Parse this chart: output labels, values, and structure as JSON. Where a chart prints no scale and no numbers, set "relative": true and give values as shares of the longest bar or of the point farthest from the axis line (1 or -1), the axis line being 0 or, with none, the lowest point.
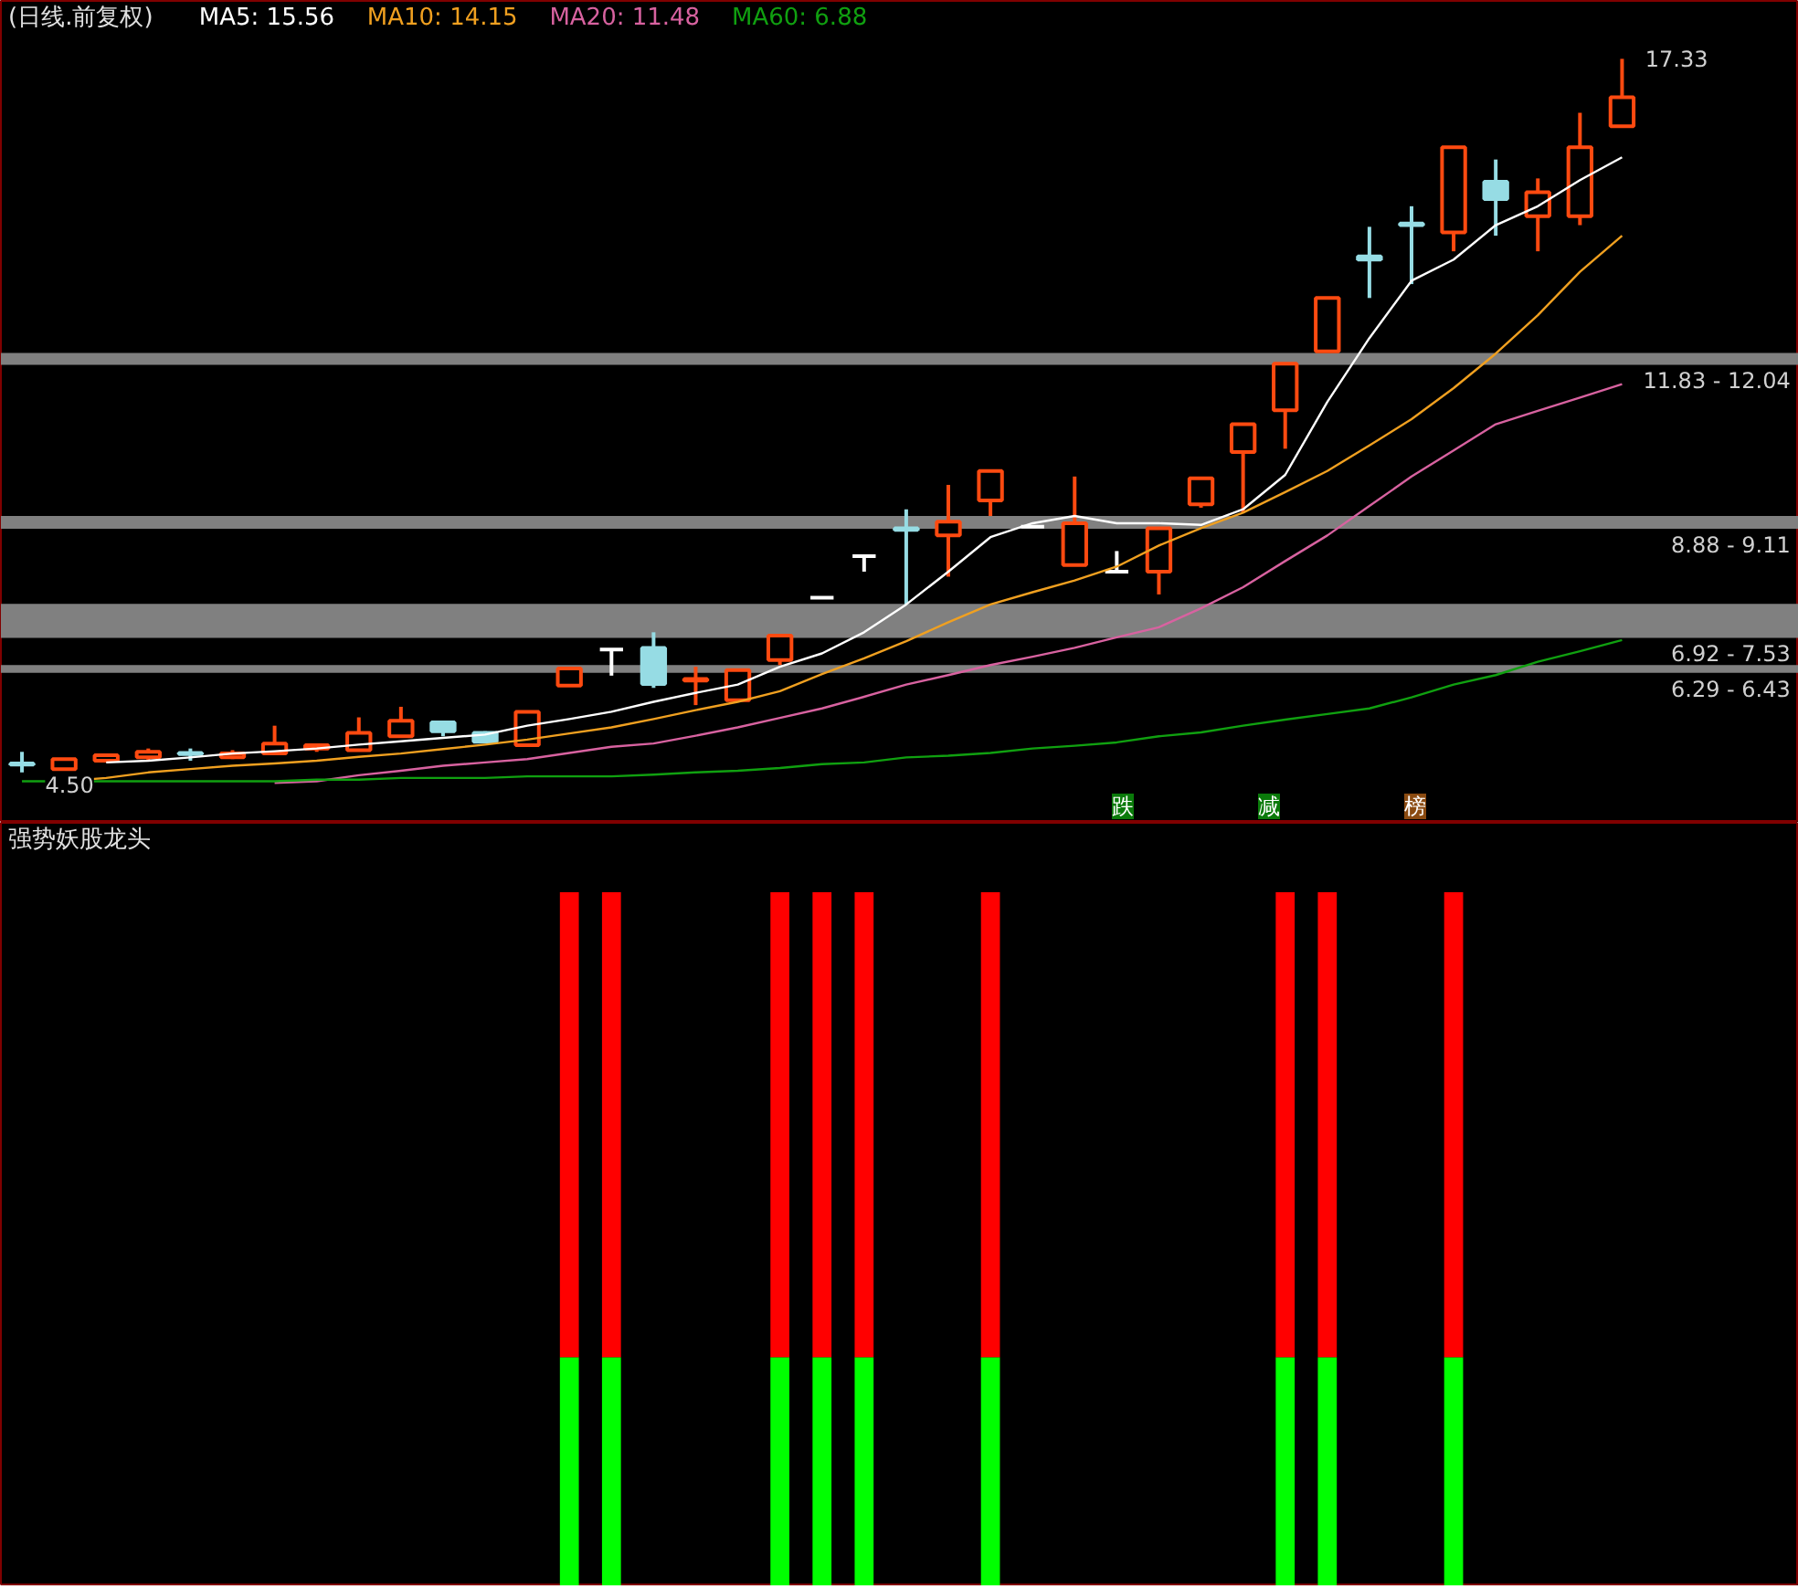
{
  "chart_data": [
    {
      "type": "candlestick",
      "title": "(日线.前复权)",
      "legend": "top",
      "categories": [
        null,
        null,
        null,
        null,
        null,
        null,
        null,
        null,
        null,
        null,
        null,
        null,
        null,
        null,
        null,
        null,
        null,
        null,
        null,
        null,
        null,
        null,
        null,
        null,
        null,
        null,
        null,
        null,
        null,
        null,
        null,
        null,
        null,
        null,
        null,
        null,
        null,
        null,
        null
      ],
      "ohlc": [
        [
          4.66,
          4.87,
          4.5,
          4.64
        ],
        [
          4.56,
          4.74,
          4.56,
          4.74
        ],
        [
          4.71,
          4.81,
          4.71,
          4.81
        ],
        [
          4.77,
          4.93,
          4.71,
          4.87
        ],
        [
          4.85,
          4.93,
          4.71,
          4.83
        ],
        [
          4.77,
          4.9,
          4.74,
          4.84
        ],
        [
          4.84,
          5.34,
          4.84,
          5.02
        ],
        [
          4.93,
          4.99,
          4.87,
          4.99
        ],
        [
          4.9,
          5.49,
          4.9,
          5.21
        ],
        [
          5.15,
          5.68,
          5.15,
          5.43
        ],
        [
          5.4,
          5.4,
          5.15,
          5.24
        ],
        [
          5.21,
          5.24,
          5.05,
          5.05
        ],
        [
          4.99,
          5.59,
          4.99,
          5.59
        ],
        [
          6.06,
          6.37,
          6.06,
          6.37
        ],
        [
          6.71,
          6.71,
          6.24,
          6.71
        ],
        [
          6.74,
          7.02,
          6.02,
          6.09
        ],
        [
          6.15,
          6.4,
          5.71,
          6.18
        ],
        [
          5.8,
          6.34,
          5.8,
          6.34
        ],
        [
          6.52,
          6.96,
          6.43,
          6.96
        ],
        [
          7.64,
          7.64,
          7.64,
          7.64
        ],
        [
          8.39,
          8.39,
          8.11,
          8.39
        ],
        [
          8.89,
          9.23,
          7.52,
          8.86
        ],
        [
          8.76,
          9.67,
          8.02,
          9.01
        ],
        [
          9.39,
          9.92,
          9.11,
          9.92
        ],
        [
          8.92,
          8.92,
          8.92,
          8.92
        ],
        [
          8.23,
          9.82,
          8.23,
          8.98
        ],
        [
          8.11,
          8.48,
          8.11,
          8.11
        ],
        [
          8.11,
          8.89,
          7.7,
          8.89
        ],
        [
          9.32,
          9.79,
          9.26,
          9.79
        ],
        [
          10.26,
          10.76,
          9.17,
          10.76
        ],
        [
          11.01,
          11.85,
          10.32,
          11.85
        ],
        [
          12.07,
          13.03,
          12.07,
          13.03
        ],
        [
          13.78,
          14.31,
          13.03,
          13.72
        ],
        [
          14.37,
          14.68,
          13.28,
          14.34
        ],
        [
          14.21,
          15.74,
          13.87,
          15.74
        ],
        [
          15.12,
          15.52,
          14.15,
          14.81
        ],
        [
          14.5,
          15.18,
          13.87,
          14.93
        ],
        [
          14.5,
          16.36,
          14.34,
          15.74
        ],
        [
          16.12,
          17.33,
          16.12,
          16.64
        ]
      ],
      "colors": [
        "#96dce4",
        "#ff4a10",
        "#ff4a10",
        "#ff4a10",
        "#96dce4",
        "#ff4a10",
        "#ff4a10",
        "#ff4a10",
        "#ff4a10",
        "#ff4a10",
        "#96dce4",
        "#96dce4",
        "#ff4a10",
        "#ff4a10",
        "#ffffff",
        "#96dce4",
        "#ff4a10",
        "#ff4a10",
        "#ff4a10",
        "#ffffff",
        "#ffffff",
        "#96dce4",
        "#ff4a10",
        "#ff4a10",
        "#ffffff",
        "#ff4a10",
        "#ffffff",
        "#ff4a10",
        "#ff4a10",
        "#ff4a10",
        "#ff4a10",
        "#ff4a10",
        "#96dce4",
        "#96dce4",
        "#ff4a10",
        "#96dce4",
        "#ff4a10",
        "#ff4a10",
        "#ff4a10"
      ],
      "series": [
        {
          "type": "line",
          "name": "MA5: 15.56",
          "color": "#ffffff",
          "values": [
            null,
            null,
            4.68,
            4.71,
            4.77,
            4.84,
            4.88,
            4.93,
            5.0,
            5.06,
            5.12,
            5.18,
            5.34,
            5.46,
            5.59,
            5.77,
            5.93,
            6.08,
            6.4,
            6.64,
            7.02,
            7.52,
            8.11,
            8.73,
            8.98,
            9.11,
            8.98,
            8.98,
            8.95,
            9.23,
            9.85,
            11.16,
            12.31,
            13.34,
            13.72,
            14.34,
            14.68,
            15.15,
            15.56
          ]
        },
        {
          "type": "line",
          "name": "MA10: 14.15",
          "color": "#f0a020",
          "values": [
            null,
            4.34,
            4.4,
            4.5,
            4.56,
            4.62,
            4.66,
            4.71,
            4.78,
            4.84,
            4.92,
            5.0,
            5.09,
            5.2,
            5.31,
            5.46,
            5.62,
            5.77,
            5.96,
            6.27,
            6.55,
            6.86,
            7.2,
            7.52,
            7.74,
            7.95,
            8.2,
            8.58,
            8.89,
            9.17,
            9.54,
            9.92,
            10.38,
            10.85,
            11.41,
            12.03,
            12.72,
            13.5,
            14.15
          ]
        },
        {
          "type": "line",
          "name": "MA20: 11.48",
          "color": "#d862a0",
          "values": [
            null,
            null,
            null,
            null,
            null,
            null,
            4.31,
            4.34,
            4.45,
            4.53,
            4.62,
            4.68,
            4.74,
            4.85,
            4.96,
            5.02,
            5.16,
            5.31,
            5.48,
            5.65,
            5.86,
            6.08,
            6.25,
            6.43,
            6.58,
            6.74,
            6.93,
            7.11,
            7.45,
            7.83,
            8.3,
            8.76,
            9.29,
            9.82,
            10.29,
            10.76,
            11.0,
            11.24,
            11.48
          ]
        },
        {
          "type": "line",
          "name": "MA60: 6.88",
          "color": "#10a010",
          "values": [
            4.34,
            4.34,
            4.34,
            4.34,
            4.34,
            4.34,
            4.34,
            4.37,
            4.37,
            4.4,
            4.4,
            4.4,
            4.43,
            4.43,
            4.43,
            4.46,
            4.5,
            4.53,
            4.58,
            4.65,
            4.68,
            4.77,
            4.8,
            4.85,
            4.93,
            4.98,
            5.04,
            5.15,
            5.22,
            5.34,
            5.45,
            5.55,
            5.65,
            5.85,
            6.08,
            6.25,
            6.49,
            6.68,
            6.88
          ]
        }
      ],
      "bands": [
        {
          "axis": "y",
          "from": 6.29,
          "to": 6.43,
          "label": "6.29 - 6.43",
          "color": "#808080"
        },
        {
          "axis": "y",
          "from": 6.92,
          "to": 7.53,
          "label": "6.92 - 7.53",
          "color": "#808080"
        },
        {
          "axis": "y",
          "from": 8.88,
          "to": 9.11,
          "label": "8.88 - 9.11",
          "color": "#808080"
        },
        {
          "axis": "y",
          "from": 11.83,
          "to": 12.04,
          "label": "11.83 - 12.04",
          "color": "#808080"
        }
      ],
      "annotations": [
        "17.33",
        "4.50",
        "跌",
        "减",
        "榜"
      ]
    },
    {
      "type": "bar",
      "title": "强势妖股龙头",
      "stacked": true,
      "relative": true,
      "categories": [
        null,
        null,
        null,
        null,
        null,
        null,
        null,
        null,
        null,
        null,
        null,
        null,
        null,
        null,
        null,
        null,
        null,
        null,
        null,
        null,
        null,
        null,
        null,
        null,
        null,
        null,
        null,
        null,
        null,
        null,
        null,
        null,
        null,
        null,
        null,
        null,
        null,
        null,
        null
      ],
      "series": [
        {
          "color": "#00ff00",
          "values": [
            null,
            null,
            null,
            null,
            null,
            null,
            null,
            null,
            null,
            null,
            null,
            null,
            null,
            0.33,
            0.33,
            null,
            null,
            null,
            0.33,
            0.33,
            0.33,
            null,
            null,
            0.33,
            null,
            null,
            null,
            null,
            null,
            null,
            0.33,
            0.33,
            null,
            null,
            0.33,
            null,
            null,
            null,
            null
          ]
        },
        {
          "color": "#ff0000",
          "values": [
            null,
            null,
            null,
            null,
            null,
            null,
            null,
            null,
            null,
            null,
            null,
            null,
            null,
            0.67,
            0.67,
            null,
            null,
            null,
            0.67,
            0.67,
            0.67,
            null,
            null,
            0.67,
            null,
            null,
            null,
            null,
            null,
            null,
            0.67,
            0.67,
            null,
            null,
            0.67,
            null,
            null,
            null,
            null
          ]
        }
      ]
    }
  ]
}
